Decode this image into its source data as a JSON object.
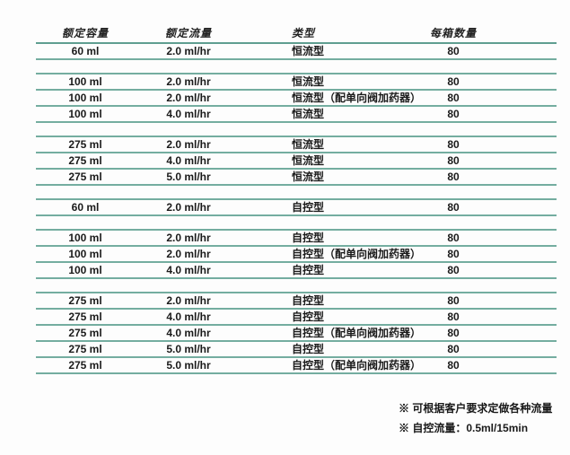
{
  "table": {
    "headers": [
      "额定容量",
      "额定流量",
      "类型",
      "每箱数量"
    ],
    "groups": [
      {
        "rows": [
          [
            "60 ml",
            "2.0 ml/hr",
            "恒流型",
            "80"
          ]
        ]
      },
      {
        "rows": [
          [
            "100 ml",
            "2.0 ml/hr",
            "恒流型",
            "80"
          ],
          [
            "100 ml",
            "2.0 ml/hr",
            "恒流型（配单向阀加药器）",
            "80"
          ],
          [
            "100 ml",
            "4.0 ml/hr",
            "恒流型",
            "80"
          ]
        ]
      },
      {
        "rows": [
          [
            "275 ml",
            "2.0 ml/hr",
            "恒流型",
            "80"
          ],
          [
            "275 ml",
            "4.0 ml/hr",
            "恒流型",
            "80"
          ],
          [
            "275 ml",
            "5.0 ml/hr",
            "恒流型",
            "80"
          ]
        ]
      },
      {
        "rows": [
          [
            "60 ml",
            "2.0 ml/hr",
            "自控型",
            "80"
          ]
        ]
      },
      {
        "rows": [
          [
            "100 ml",
            "2.0 ml/hr",
            "自控型",
            "80"
          ],
          [
            "100 ml",
            "2.0 ml/hr",
            "自控型（配单向阀加药器）",
            "80"
          ],
          [
            "100 ml",
            "4.0 ml/hr",
            "自控型",
            "80"
          ]
        ]
      },
      {
        "rows": [
          [
            "275 ml",
            "2.0 ml/hr",
            "自控型",
            "80"
          ],
          [
            "275 ml",
            "4.0 ml/hr",
            "自控型",
            "80"
          ],
          [
            "275 ml",
            "4.0 ml/hr",
            "自控型（配单向阀加药器）",
            "80"
          ],
          [
            "275 ml",
            "5.0 ml/hr",
            "自控型",
            "80"
          ],
          [
            "275 ml",
            "5.0 ml/hr",
            "自控型（配单向阀加药器）",
            "80"
          ]
        ]
      }
    ]
  },
  "notes": [
    "※ 可根据客户要求定做各种流量",
    "※ 自控流量：0.5ml/15min"
  ],
  "colors": {
    "line": "#74ada0",
    "line_dark": "#5f9e90",
    "text": "#1a1a1a"
  }
}
